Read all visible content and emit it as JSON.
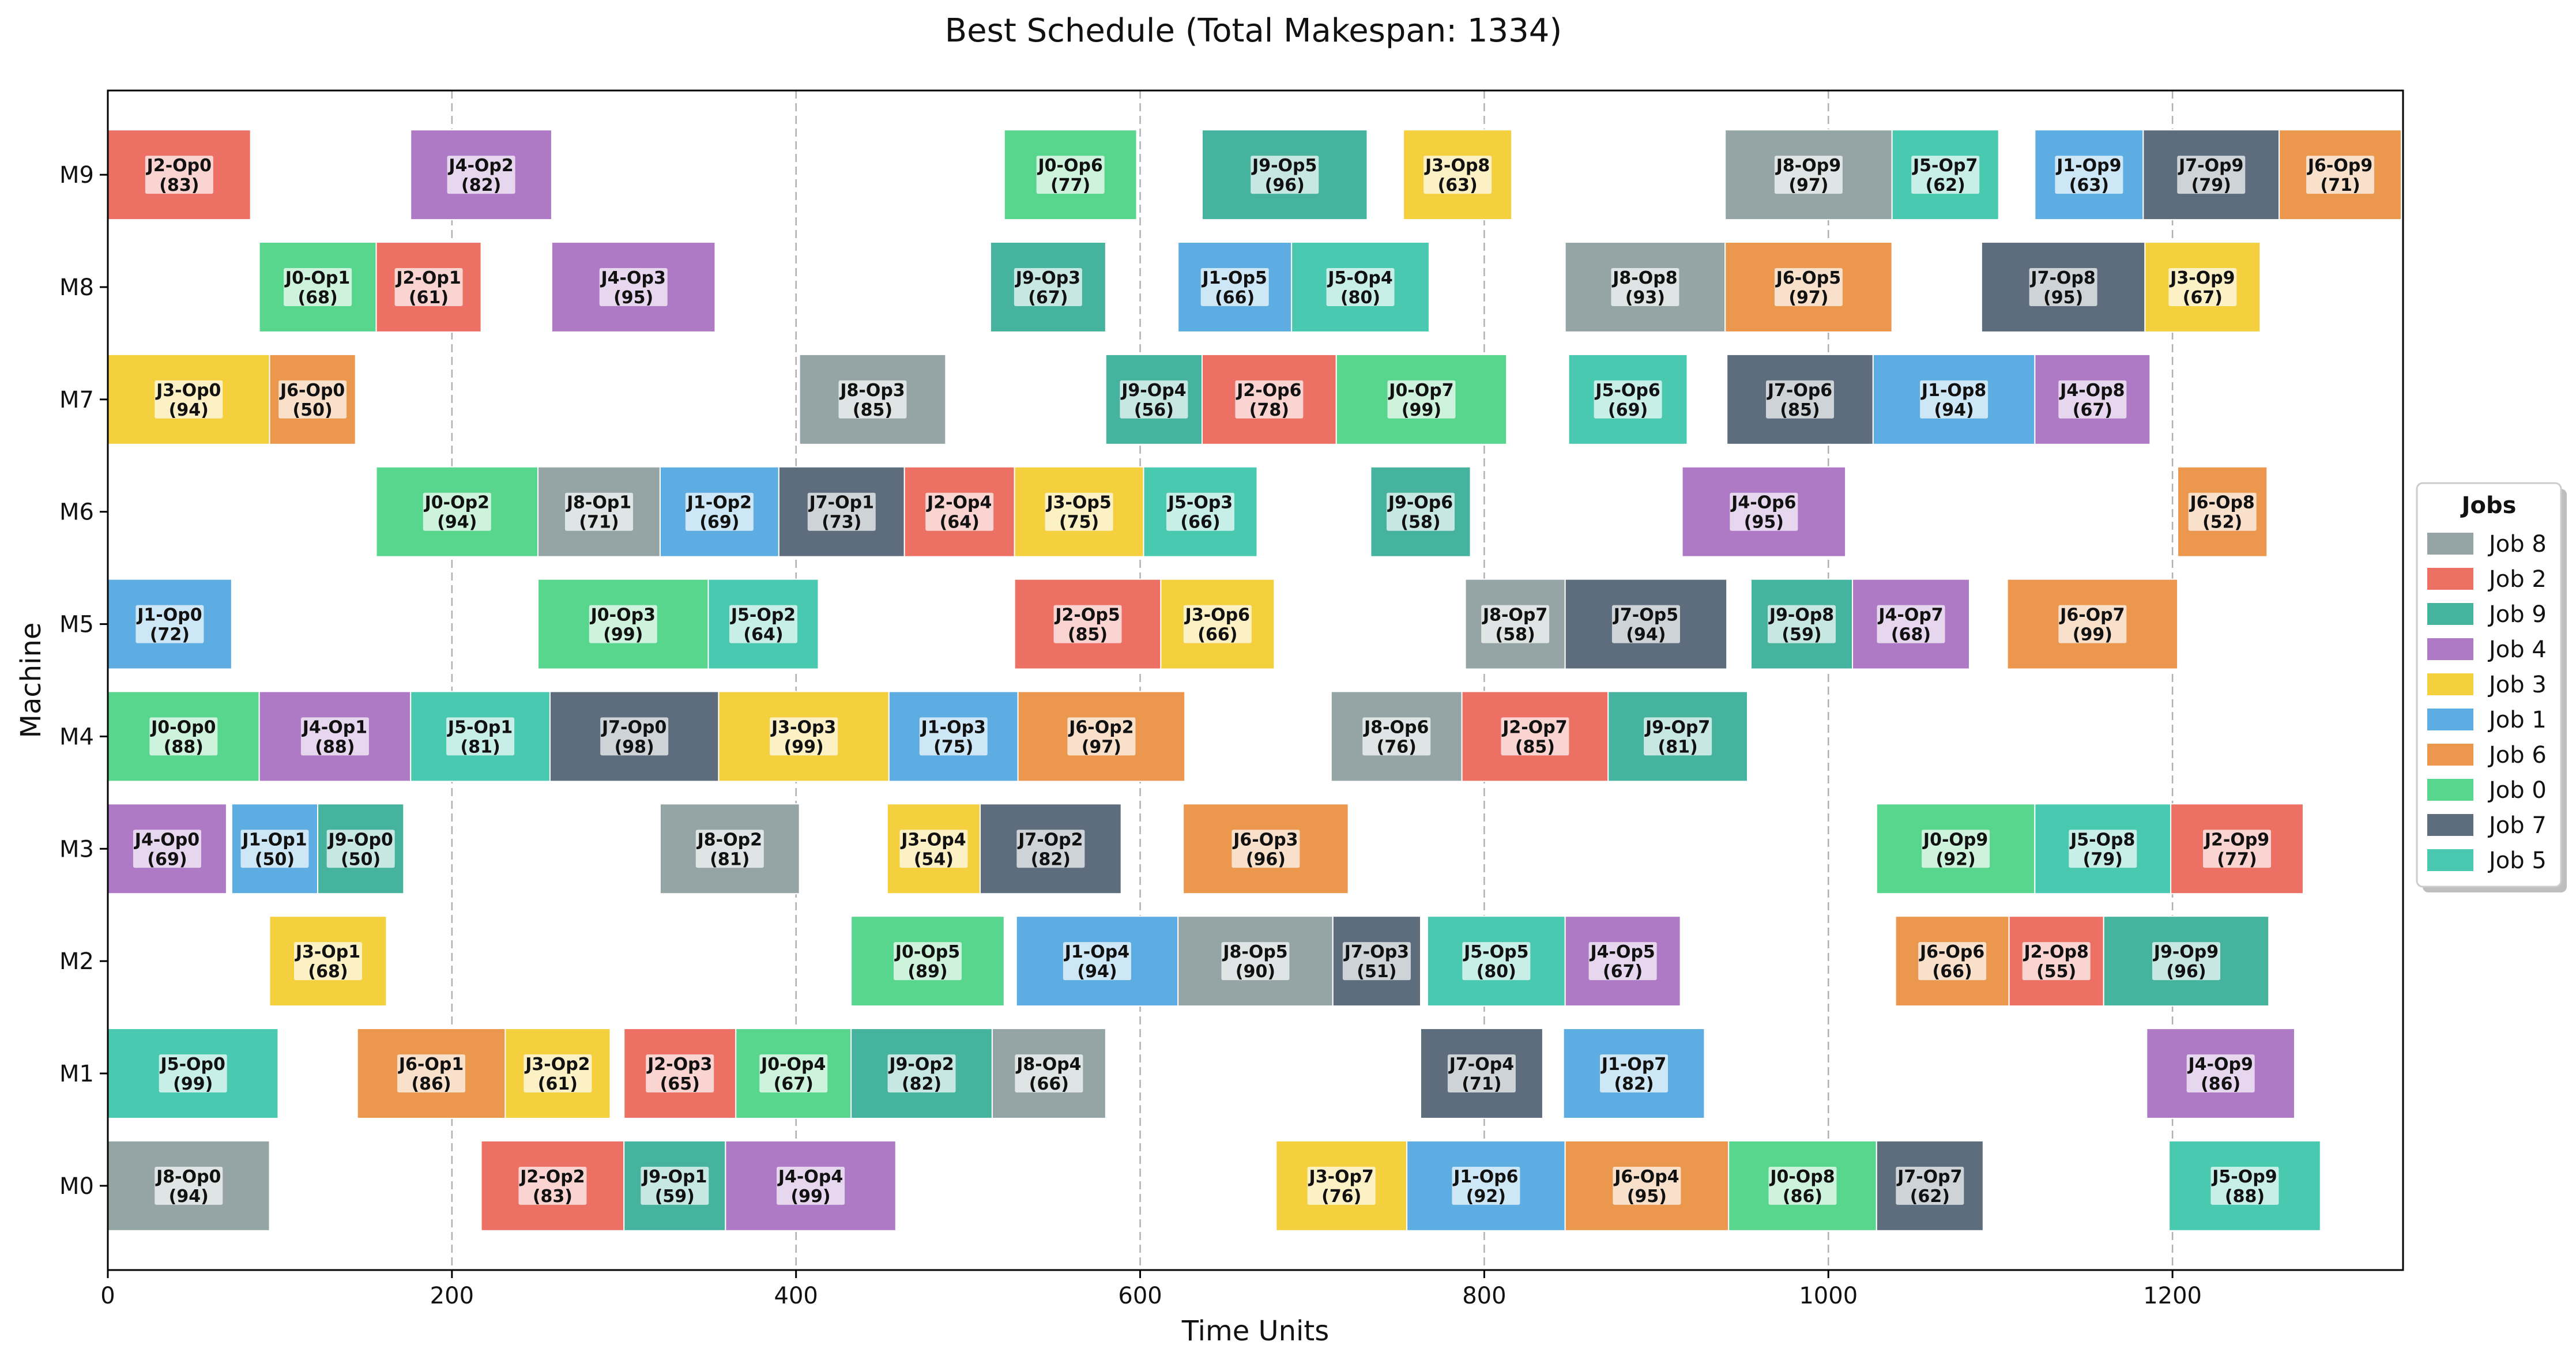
{
  "chart_data": {
    "type": "gantt",
    "title": "Best Schedule (Total Makespan: 1334)",
    "xlabel": "Time Units",
    "ylabel": "Machine",
    "xlim": [
      0,
      1334
    ],
    "xticks": [
      0,
      200,
      400,
      600,
      800,
      1000,
      1200
    ],
    "machines": [
      "M0",
      "M1",
      "M2",
      "M3",
      "M4",
      "M5",
      "M6",
      "M7",
      "M8",
      "M9"
    ],
    "grid": "x-dashed",
    "legend": {
      "title": "Jobs",
      "placement": "right",
      "entries": [
        {
          "job": 8,
          "label": "Job 8"
        },
        {
          "job": 2,
          "label": "Job 2"
        },
        {
          "job": 9,
          "label": "Job 9"
        },
        {
          "job": 4,
          "label": "Job 4"
        },
        {
          "job": 3,
          "label": "Job 3"
        },
        {
          "job": 1,
          "label": "Job 1"
        },
        {
          "job": 6,
          "label": "Job 6"
        },
        {
          "job": 0,
          "label": "Job 0"
        },
        {
          "job": 7,
          "label": "Job 7"
        },
        {
          "job": 5,
          "label": "Job 5"
        }
      ]
    },
    "job_colors": {
      "0": "#58d68d",
      "1": "#5dade2",
      "2": "#ec7063",
      "3": "#f4d03f",
      "4": "#af7ac5",
      "5": "#48c9b0",
      "6": "#eb984e",
      "7": "#5d6d7e",
      "8": "#95a5a6",
      "9": "#45b39d"
    },
    "operations": [
      {
        "machine": "M0",
        "job": 8,
        "op": 0,
        "start": 0,
        "duration": 94,
        "name": "J8-Op0",
        "dur_label": "(94)"
      },
      {
        "machine": "M0",
        "job": 2,
        "op": 2,
        "start": 217,
        "duration": 83,
        "name": "J2-Op2",
        "dur_label": "(83)"
      },
      {
        "machine": "M0",
        "job": 9,
        "op": 1,
        "start": 300,
        "duration": 59,
        "name": "J9-Op1",
        "dur_label": "(59)"
      },
      {
        "machine": "M0",
        "job": 4,
        "op": 4,
        "start": 359,
        "duration": 99,
        "name": "J4-Op4",
        "dur_label": "(99)"
      },
      {
        "machine": "M0",
        "job": 3,
        "op": 7,
        "start": 679,
        "duration": 76,
        "name": "J3-Op7",
        "dur_label": "(76)"
      },
      {
        "machine": "M0",
        "job": 1,
        "op": 6,
        "start": 755,
        "duration": 92,
        "name": "J1-Op6",
        "dur_label": "(92)"
      },
      {
        "machine": "M0",
        "job": 6,
        "op": 4,
        "start": 847,
        "duration": 95,
        "name": "J6-Op4",
        "dur_label": "(95)"
      },
      {
        "machine": "M0",
        "job": 0,
        "op": 8,
        "start": 942,
        "duration": 86,
        "name": "J0-Op8",
        "dur_label": "(86)"
      },
      {
        "machine": "M0",
        "job": 7,
        "op": 7,
        "start": 1028,
        "duration": 62,
        "name": "J7-Op7",
        "dur_label": "(62)"
      },
      {
        "machine": "M0",
        "job": 5,
        "op": 9,
        "start": 1198,
        "duration": 88,
        "name": "J5-Op9",
        "dur_label": "(88)"
      },
      {
        "machine": "M1",
        "job": 5,
        "op": 0,
        "start": 0,
        "duration": 99,
        "name": "J5-Op0",
        "dur_label": "(99)"
      },
      {
        "machine": "M1",
        "job": 6,
        "op": 1,
        "start": 145,
        "duration": 86,
        "name": "J6-Op1",
        "dur_label": "(86)"
      },
      {
        "machine": "M1",
        "job": 3,
        "op": 2,
        "start": 231,
        "duration": 61,
        "name": "J3-Op2",
        "dur_label": "(61)"
      },
      {
        "machine": "M1",
        "job": 2,
        "op": 3,
        "start": 300,
        "duration": 65,
        "name": "J2-Op3",
        "dur_label": "(65)"
      },
      {
        "machine": "M1",
        "job": 0,
        "op": 4,
        "start": 365,
        "duration": 67,
        "name": "J0-Op4",
        "dur_label": "(67)"
      },
      {
        "machine": "M1",
        "job": 9,
        "op": 2,
        "start": 432,
        "duration": 82,
        "name": "J9-Op2",
        "dur_label": "(82)"
      },
      {
        "machine": "M1",
        "job": 8,
        "op": 4,
        "start": 514,
        "duration": 66,
        "name": "J8-Op4",
        "dur_label": "(66)"
      },
      {
        "machine": "M1",
        "job": 7,
        "op": 4,
        "start": 763,
        "duration": 71,
        "name": "J7-Op4",
        "dur_label": "(71)"
      },
      {
        "machine": "M1",
        "job": 1,
        "op": 7,
        "start": 846,
        "duration": 82,
        "name": "J1-Op7",
        "dur_label": "(82)"
      },
      {
        "machine": "M1",
        "job": 4,
        "op": 9,
        "start": 1185,
        "duration": 86,
        "name": "J4-Op9",
        "dur_label": "(86)"
      },
      {
        "machine": "M2",
        "job": 3,
        "op": 1,
        "start": 94,
        "duration": 68,
        "name": "J3-Op1",
        "dur_label": "(68)"
      },
      {
        "machine": "M2",
        "job": 0,
        "op": 5,
        "start": 432,
        "duration": 89,
        "name": "J0-Op5",
        "dur_label": "(89)"
      },
      {
        "machine": "M2",
        "job": 1,
        "op": 4,
        "start": 528,
        "duration": 94,
        "name": "J1-Op4",
        "dur_label": "(94)"
      },
      {
        "machine": "M2",
        "job": 8,
        "op": 5,
        "start": 622,
        "duration": 90,
        "name": "J8-Op5",
        "dur_label": "(90)"
      },
      {
        "machine": "M2",
        "job": 7,
        "op": 3,
        "start": 712,
        "duration": 51,
        "name": "J7-Op3",
        "dur_label": "(51)"
      },
      {
        "machine": "M2",
        "job": 5,
        "op": 5,
        "start": 767,
        "duration": 80,
        "name": "J5-Op5",
        "dur_label": "(80)"
      },
      {
        "machine": "M2",
        "job": 4,
        "op": 5,
        "start": 847,
        "duration": 67,
        "name": "J4-Op5",
        "dur_label": "(67)"
      },
      {
        "machine": "M2",
        "job": 6,
        "op": 6,
        "start": 1039,
        "duration": 66,
        "name": "J6-Op6",
        "dur_label": "(66)"
      },
      {
        "machine": "M2",
        "job": 2,
        "op": 8,
        "start": 1105,
        "duration": 55,
        "name": "J2-Op8",
        "dur_label": "(55)"
      },
      {
        "machine": "M2",
        "job": 9,
        "op": 9,
        "start": 1160,
        "duration": 96,
        "name": "J9-Op9",
        "dur_label": "(96)"
      },
      {
        "machine": "M3",
        "job": 4,
        "op": 0,
        "start": 0,
        "duration": 69,
        "name": "J4-Op0",
        "dur_label": "(69)"
      },
      {
        "machine": "M3",
        "job": 1,
        "op": 1,
        "start": 72,
        "duration": 50,
        "name": "J1-Op1",
        "dur_label": "(50)"
      },
      {
        "machine": "M3",
        "job": 9,
        "op": 0,
        "start": 122,
        "duration": 50,
        "name": "J9-Op0",
        "dur_label": "(50)"
      },
      {
        "machine": "M3",
        "job": 8,
        "op": 2,
        "start": 321,
        "duration": 81,
        "name": "J8-Op2",
        "dur_label": "(81)"
      },
      {
        "machine": "M3",
        "job": 3,
        "op": 4,
        "start": 453,
        "duration": 54,
        "name": "J3-Op4",
        "dur_label": "(54)"
      },
      {
        "machine": "M3",
        "job": 7,
        "op": 2,
        "start": 507,
        "duration": 82,
        "name": "J7-Op2",
        "dur_label": "(82)"
      },
      {
        "machine": "M3",
        "job": 6,
        "op": 3,
        "start": 625,
        "duration": 96,
        "name": "J6-Op3",
        "dur_label": "(96)"
      },
      {
        "machine": "M3",
        "job": 0,
        "op": 9,
        "start": 1028,
        "duration": 92,
        "name": "J0-Op9",
        "dur_label": "(92)"
      },
      {
        "machine": "M3",
        "job": 5,
        "op": 8,
        "start": 1120,
        "duration": 79,
        "name": "J5-Op8",
        "dur_label": "(79)"
      },
      {
        "machine": "M3",
        "job": 2,
        "op": 9,
        "start": 1199,
        "duration": 77,
        "name": "J2-Op9",
        "dur_label": "(77)"
      },
      {
        "machine": "M4",
        "job": 0,
        "op": 0,
        "start": 0,
        "duration": 88,
        "name": "J0-Op0",
        "dur_label": "(88)"
      },
      {
        "machine": "M4",
        "job": 4,
        "op": 1,
        "start": 88,
        "duration": 88,
        "name": "J4-Op1",
        "dur_label": "(88)"
      },
      {
        "machine": "M4",
        "job": 5,
        "op": 1,
        "start": 176,
        "duration": 81,
        "name": "J5-Op1",
        "dur_label": "(81)"
      },
      {
        "machine": "M4",
        "job": 7,
        "op": 0,
        "start": 257,
        "duration": 98,
        "name": "J7-Op0",
        "dur_label": "(98)"
      },
      {
        "machine": "M4",
        "job": 3,
        "op": 3,
        "start": 355,
        "duration": 99,
        "name": "J3-Op3",
        "dur_label": "(99)"
      },
      {
        "machine": "M4",
        "job": 1,
        "op": 3,
        "start": 454,
        "duration": 75,
        "name": "J1-Op3",
        "dur_label": "(75)"
      },
      {
        "machine": "M4",
        "job": 6,
        "op": 2,
        "start": 529,
        "duration": 97,
        "name": "J6-Op2",
        "dur_label": "(97)"
      },
      {
        "machine": "M4",
        "job": 8,
        "op": 6,
        "start": 711,
        "duration": 76,
        "name": "J8-Op6",
        "dur_label": "(76)"
      },
      {
        "machine": "M4",
        "job": 2,
        "op": 7,
        "start": 787,
        "duration": 85,
        "name": "J2-Op7",
        "dur_label": "(85)"
      },
      {
        "machine": "M4",
        "job": 9,
        "op": 7,
        "start": 872,
        "duration": 81,
        "name": "J9-Op7",
        "dur_label": "(81)"
      },
      {
        "machine": "M5",
        "job": 1,
        "op": 0,
        "start": 0,
        "duration": 72,
        "name": "J1-Op0",
        "dur_label": "(72)"
      },
      {
        "machine": "M5",
        "job": 0,
        "op": 3,
        "start": 250,
        "duration": 99,
        "name": "J0-Op3",
        "dur_label": "(99)"
      },
      {
        "machine": "M5",
        "job": 5,
        "op": 2,
        "start": 349,
        "duration": 64,
        "name": "J5-Op2",
        "dur_label": "(64)"
      },
      {
        "machine": "M5",
        "job": 2,
        "op": 5,
        "start": 527,
        "duration": 85,
        "name": "J2-Op5",
        "dur_label": "(85)"
      },
      {
        "machine": "M5",
        "job": 3,
        "op": 6,
        "start": 612,
        "duration": 66,
        "name": "J3-Op6",
        "dur_label": "(66)"
      },
      {
        "machine": "M5",
        "job": 8,
        "op": 7,
        "start": 789,
        "duration": 58,
        "name": "J8-Op7",
        "dur_label": "(58)"
      },
      {
        "machine": "M5",
        "job": 7,
        "op": 5,
        "start": 847,
        "duration": 94,
        "name": "J7-Op5",
        "dur_label": "(94)"
      },
      {
        "machine": "M5",
        "job": 9,
        "op": 8,
        "start": 955,
        "duration": 59,
        "name": "J9-Op8",
        "dur_label": "(59)"
      },
      {
        "machine": "M5",
        "job": 4,
        "op": 7,
        "start": 1014,
        "duration": 68,
        "name": "J4-Op7",
        "dur_label": "(68)"
      },
      {
        "machine": "M5",
        "job": 6,
        "op": 7,
        "start": 1104,
        "duration": 99,
        "name": "J6-Op7",
        "dur_label": "(99)"
      },
      {
        "machine": "M6",
        "job": 0,
        "op": 2,
        "start": 156,
        "duration": 94,
        "name": "J0-Op2",
        "dur_label": "(94)"
      },
      {
        "machine": "M6",
        "job": 8,
        "op": 1,
        "start": 250,
        "duration": 71,
        "name": "J8-Op1",
        "dur_label": "(71)"
      },
      {
        "machine": "M6",
        "job": 1,
        "op": 2,
        "start": 321,
        "duration": 69,
        "name": "J1-Op2",
        "dur_label": "(69)"
      },
      {
        "machine": "M6",
        "job": 7,
        "op": 1,
        "start": 390,
        "duration": 73,
        "name": "J7-Op1",
        "dur_label": "(73)"
      },
      {
        "machine": "M6",
        "job": 2,
        "op": 4,
        "start": 463,
        "duration": 64,
        "name": "J2-Op4",
        "dur_label": "(64)"
      },
      {
        "machine": "M6",
        "job": 3,
        "op": 5,
        "start": 527,
        "duration": 75,
        "name": "J3-Op5",
        "dur_label": "(75)"
      },
      {
        "machine": "M6",
        "job": 5,
        "op": 3,
        "start": 602,
        "duration": 66,
        "name": "J5-Op3",
        "dur_label": "(66)"
      },
      {
        "machine": "M6",
        "job": 9,
        "op": 6,
        "start": 734,
        "duration": 58,
        "name": "J9-Op6",
        "dur_label": "(58)"
      },
      {
        "machine": "M6",
        "job": 4,
        "op": 6,
        "start": 915,
        "duration": 95,
        "name": "J4-Op6",
        "dur_label": "(95)"
      },
      {
        "machine": "M6",
        "job": 6,
        "op": 8,
        "start": 1203,
        "duration": 52,
        "name": "J6-Op8",
        "dur_label": "(52)"
      },
      {
        "machine": "M7",
        "job": 3,
        "op": 0,
        "start": 0,
        "duration": 94,
        "name": "J3-Op0",
        "dur_label": "(94)"
      },
      {
        "machine": "M7",
        "job": 6,
        "op": 0,
        "start": 94,
        "duration": 50,
        "name": "J6-Op0",
        "dur_label": "(50)"
      },
      {
        "machine": "M7",
        "job": 8,
        "op": 3,
        "start": 402,
        "duration": 85,
        "name": "J8-Op3",
        "dur_label": "(85)"
      },
      {
        "machine": "M7",
        "job": 9,
        "op": 4,
        "start": 580,
        "duration": 56,
        "name": "J9-Op4",
        "dur_label": "(56)"
      },
      {
        "machine": "M7",
        "job": 2,
        "op": 6,
        "start": 636,
        "duration": 78,
        "name": "J2-Op6",
        "dur_label": "(78)"
      },
      {
        "machine": "M7",
        "job": 0,
        "op": 7,
        "start": 714,
        "duration": 99,
        "name": "J0-Op7",
        "dur_label": "(99)"
      },
      {
        "machine": "M7",
        "job": 5,
        "op": 6,
        "start": 849,
        "duration": 69,
        "name": "J5-Op6",
        "dur_label": "(69)"
      },
      {
        "machine": "M7",
        "job": 7,
        "op": 6,
        "start": 941,
        "duration": 85,
        "name": "J7-Op6",
        "dur_label": "(85)"
      },
      {
        "machine": "M7",
        "job": 1,
        "op": 8,
        "start": 1026,
        "duration": 94,
        "name": "J1-Op8",
        "dur_label": "(94)"
      },
      {
        "machine": "M7",
        "job": 4,
        "op": 8,
        "start": 1120,
        "duration": 67,
        "name": "J4-Op8",
        "dur_label": "(67)"
      },
      {
        "machine": "M8",
        "job": 0,
        "op": 1,
        "start": 88,
        "duration": 68,
        "name": "J0-Op1",
        "dur_label": "(68)"
      },
      {
        "machine": "M8",
        "job": 2,
        "op": 1,
        "start": 156,
        "duration": 61,
        "name": "J2-Op1",
        "dur_label": "(61)"
      },
      {
        "machine": "M8",
        "job": 4,
        "op": 3,
        "start": 258,
        "duration": 95,
        "name": "J4-Op3",
        "dur_label": "(95)"
      },
      {
        "machine": "M8",
        "job": 9,
        "op": 3,
        "start": 513,
        "duration": 67,
        "name": "J9-Op3",
        "dur_label": "(67)"
      },
      {
        "machine": "M8",
        "job": 1,
        "op": 5,
        "start": 622,
        "duration": 66,
        "name": "J1-Op5",
        "dur_label": "(66)"
      },
      {
        "machine": "M8",
        "job": 5,
        "op": 4,
        "start": 688,
        "duration": 80,
        "name": "J5-Op4",
        "dur_label": "(80)"
      },
      {
        "machine": "M8",
        "job": 8,
        "op": 8,
        "start": 847,
        "duration": 93,
        "name": "J8-Op8",
        "dur_label": "(93)"
      },
      {
        "machine": "M8",
        "job": 6,
        "op": 5,
        "start": 940,
        "duration": 97,
        "name": "J6-Op5",
        "dur_label": "(97)"
      },
      {
        "machine": "M8",
        "job": 7,
        "op": 8,
        "start": 1089,
        "duration": 95,
        "name": "J7-Op8",
        "dur_label": "(95)"
      },
      {
        "machine": "M8",
        "job": 3,
        "op": 9,
        "start": 1184,
        "duration": 67,
        "name": "J3-Op9",
        "dur_label": "(67)"
      },
      {
        "machine": "M9",
        "job": 2,
        "op": 0,
        "start": 0,
        "duration": 83,
        "name": "J2-Op0",
        "dur_label": "(83)"
      },
      {
        "machine": "M9",
        "job": 4,
        "op": 2,
        "start": 176,
        "duration": 82,
        "name": "J4-Op2",
        "dur_label": "(82)"
      },
      {
        "machine": "M9",
        "job": 0,
        "op": 6,
        "start": 521,
        "duration": 77,
        "name": "J0-Op6",
        "dur_label": "(77)"
      },
      {
        "machine": "M9",
        "job": 9,
        "op": 5,
        "start": 636,
        "duration": 96,
        "name": "J9-Op5",
        "dur_label": "(96)"
      },
      {
        "machine": "M9",
        "job": 3,
        "op": 8,
        "start": 753,
        "duration": 63,
        "name": "J3-Op8",
        "dur_label": "(63)"
      },
      {
        "machine": "M9",
        "job": 8,
        "op": 9,
        "start": 940,
        "duration": 97,
        "name": "J8-Op9",
        "dur_label": "(97)"
      },
      {
        "machine": "M9",
        "job": 5,
        "op": 7,
        "start": 1037,
        "duration": 62,
        "name": "J5-Op7",
        "dur_label": "(62)"
      },
      {
        "machine": "M9",
        "job": 1,
        "op": 9,
        "start": 1120,
        "duration": 63,
        "name": "J1-Op9",
        "dur_label": "(63)"
      },
      {
        "machine": "M9",
        "job": 7,
        "op": 9,
        "start": 1183,
        "duration": 79,
        "name": "J7-Op9",
        "dur_label": "(79)"
      },
      {
        "machine": "M9",
        "job": 6,
        "op": 9,
        "start": 1262,
        "duration": 71,
        "name": "J6-Op9",
        "dur_label": "(71)"
      }
    ]
  }
}
